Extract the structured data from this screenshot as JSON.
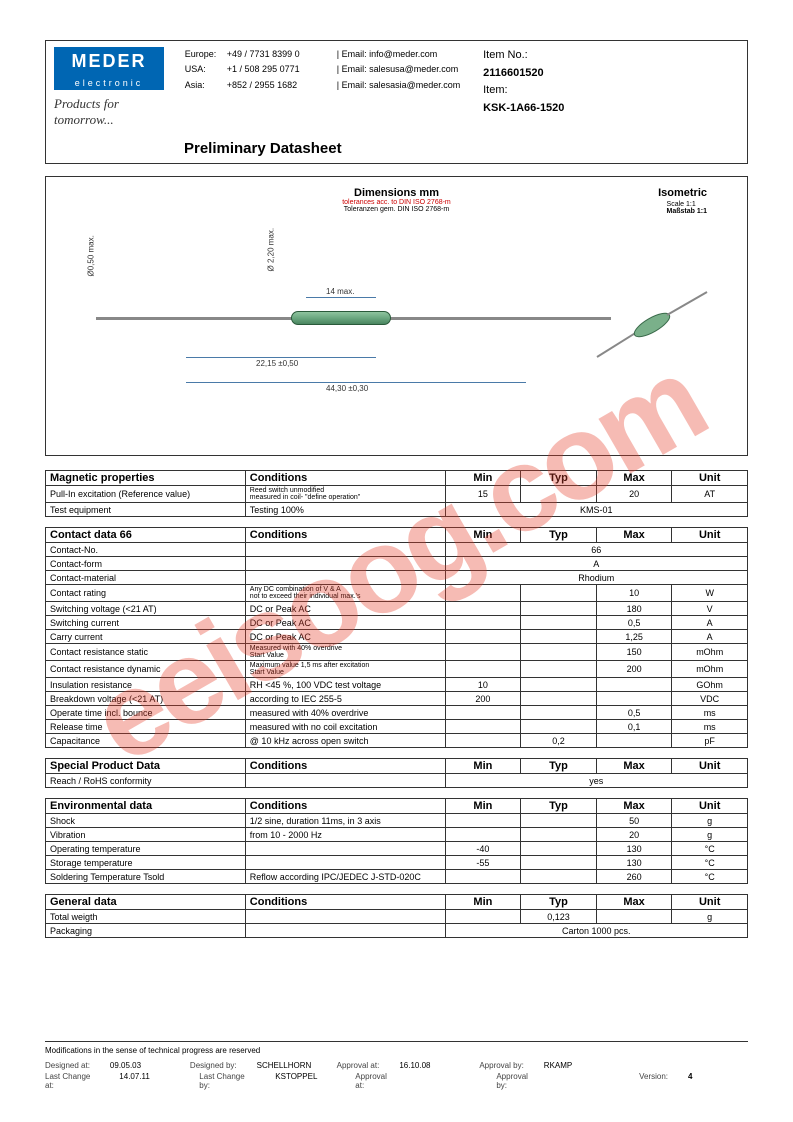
{
  "header": {
    "logo": {
      "main": "MEDER",
      "sub": "electronic",
      "tagline": "Products for tomorrow..."
    },
    "contacts": [
      {
        "region": "Europe:",
        "phone": "+49 / 7731 8399 0",
        "email": "info@meder.com"
      },
      {
        "region": "USA:",
        "phone": "+1 / 508 295 0771",
        "email": "salesusa@meder.com"
      },
      {
        "region": "Asia:",
        "phone": "+852 / 2955 1682",
        "email": "salesasia@meder.com"
      }
    ],
    "item": {
      "noLabel": "Item No.:",
      "no": "2116601520",
      "itemLabel": "Item:",
      "name": "KSK-1A66-1520"
    },
    "title": "Preliminary Datasheet"
  },
  "diagram": {
    "dimTitle": "Dimensions mm",
    "tol1": "tolerances acc. to DIN ISO 2768-m",
    "tol2": "Toleranzen gem. DIN ISO 2768-m",
    "isoTitle": "Isometric",
    "isoScale": "Scale 1:1",
    "isoMab": "Maßstab 1:1",
    "dims": {
      "d050": "Ø0,50 max.",
      "d220": "Ø 2,20 max.",
      "w14": "14 max.",
      "w2215": "22,15 ±0,50",
      "w4430": "44,30 ±0,30"
    }
  },
  "tables": [
    {
      "title": "Magnetic properties",
      "header": [
        "Conditions",
        "Min",
        "Typ",
        "Max",
        "Unit"
      ],
      "rows": [
        [
          "Pull-In excitation (Reference value)",
          "Reed switch unmodified\nmeasured in coil- \"define operation\"",
          "15",
          "",
          "20",
          "AT"
        ],
        [
          "Test equipment",
          "Testing 100%",
          {
            "span": "KMS-01",
            "cols": 4
          }
        ]
      ]
    },
    {
      "title": "Contact data  66",
      "header": [
        "Conditions",
        "Min",
        "Typ",
        "Max",
        "Unit"
      ],
      "rows": [
        [
          "Contact-No.",
          "",
          {
            "span": "66",
            "cols": 4
          }
        ],
        [
          "Contact-form",
          "",
          {
            "span": "A",
            "cols": 4
          }
        ],
        [
          "Contact-material",
          "",
          {
            "span": "Rhodium",
            "cols": 4
          }
        ],
        [
          "Contact rating",
          "Any DC combination of V & A\nnot to exceed their individual max.'s",
          "",
          "",
          "10",
          "W"
        ],
        [
          "Switching voltage (<21 AT)",
          "DC or Peak AC",
          "",
          "",
          "180",
          "V"
        ],
        [
          "Switching current",
          "DC or Peak AC",
          "",
          "",
          "0,5",
          "A"
        ],
        [
          "Carry current",
          "DC or Peak AC",
          "",
          "",
          "1,25",
          "A"
        ],
        [
          "Contact resistance static",
          "Measured with 40% overdrive\nStart Value",
          "",
          "",
          "150",
          "mOhm"
        ],
        [
          "Contact resistance dynamic",
          "Maximum value 1,5 ms after excitation\nStart Value",
          "",
          "",
          "200",
          "mOhm"
        ],
        [
          "Insulation resistance",
          "RH <45 %, 100 VDC test voltage",
          "10",
          "",
          "",
          "GOhm"
        ],
        [
          "Breakdown voltage (<21 AT)",
          "according to IEC 255-5",
          "200",
          "",
          "",
          "VDC"
        ],
        [
          "Operate time incl. bounce",
          "measured with 40% overdrive",
          "",
          "",
          "0,5",
          "ms"
        ],
        [
          "Release time",
          "measured with no coil excitation",
          "",
          "",
          "0,1",
          "ms"
        ],
        [
          "Capacitance",
          "@ 10 kHz across open switch",
          "",
          "0,2",
          "",
          "pF"
        ]
      ]
    },
    {
      "title": "Special Product Data",
      "header": [
        "Conditions",
        "Min",
        "Typ",
        "Max",
        "Unit"
      ],
      "rows": [
        [
          "Reach / RoHS conformity",
          "",
          {
            "span": "yes",
            "cols": 4
          }
        ]
      ]
    },
    {
      "title": "Environmental data",
      "header": [
        "Conditions",
        "Min",
        "Typ",
        "Max",
        "Unit"
      ],
      "rows": [
        [
          "Shock",
          "1/2 sine, duration 11ms, in 3 axis",
          "",
          "",
          "50",
          "g"
        ],
        [
          "Vibration",
          "from  10 - 2000 Hz",
          "",
          "",
          "20",
          "g"
        ],
        [
          "Operating temperature",
          "",
          "-40",
          "",
          "130",
          "°C"
        ],
        [
          "Storage temperature",
          "",
          "-55",
          "",
          "130",
          "°C"
        ],
        [
          "Soldering Temperature Tsold",
          "Reflow  according IPC/JEDEC J-STD-020C",
          "",
          "",
          "260",
          "°C"
        ]
      ]
    },
    {
      "title": "General data",
      "header": [
        "Conditions",
        "Min",
        "Typ",
        "Max",
        "Unit"
      ],
      "rows": [
        [
          "Total weigth",
          "",
          "",
          "0,123",
          "",
          "g"
        ],
        [
          "Packaging",
          "",
          {
            "span": "Carton 1000 pcs.",
            "cols": 4
          }
        ]
      ]
    }
  ],
  "footer": {
    "note": "Modifications in the sense of technical progress are reserved",
    "rows": [
      [
        {
          "l": "Designed at:",
          "v": "09.05.03"
        },
        {
          "l": "Designed by:",
          "v": "SCHELLHORN"
        },
        {
          "l": "Approval at:",
          "v": "16.10.08"
        },
        {
          "l": "Approval by:",
          "v": "RKAMP"
        },
        {
          "l": "",
          "v": ""
        }
      ],
      [
        {
          "l": "Last Change at:",
          "v": "14.07.11"
        },
        {
          "l": "Last Change by:",
          "v": "KSTOPPEL"
        },
        {
          "l": "Approval at:",
          "v": ""
        },
        {
          "l": "Approval by:",
          "v": ""
        },
        {
          "l": "Version:",
          "v": "4"
        }
      ]
    ]
  },
  "watermark": "eeisoog.com",
  "colors": {
    "brand": "#0066b3",
    "border": "#333",
    "red": "#c00",
    "wm": "rgba(230,60,40,0.35)"
  }
}
